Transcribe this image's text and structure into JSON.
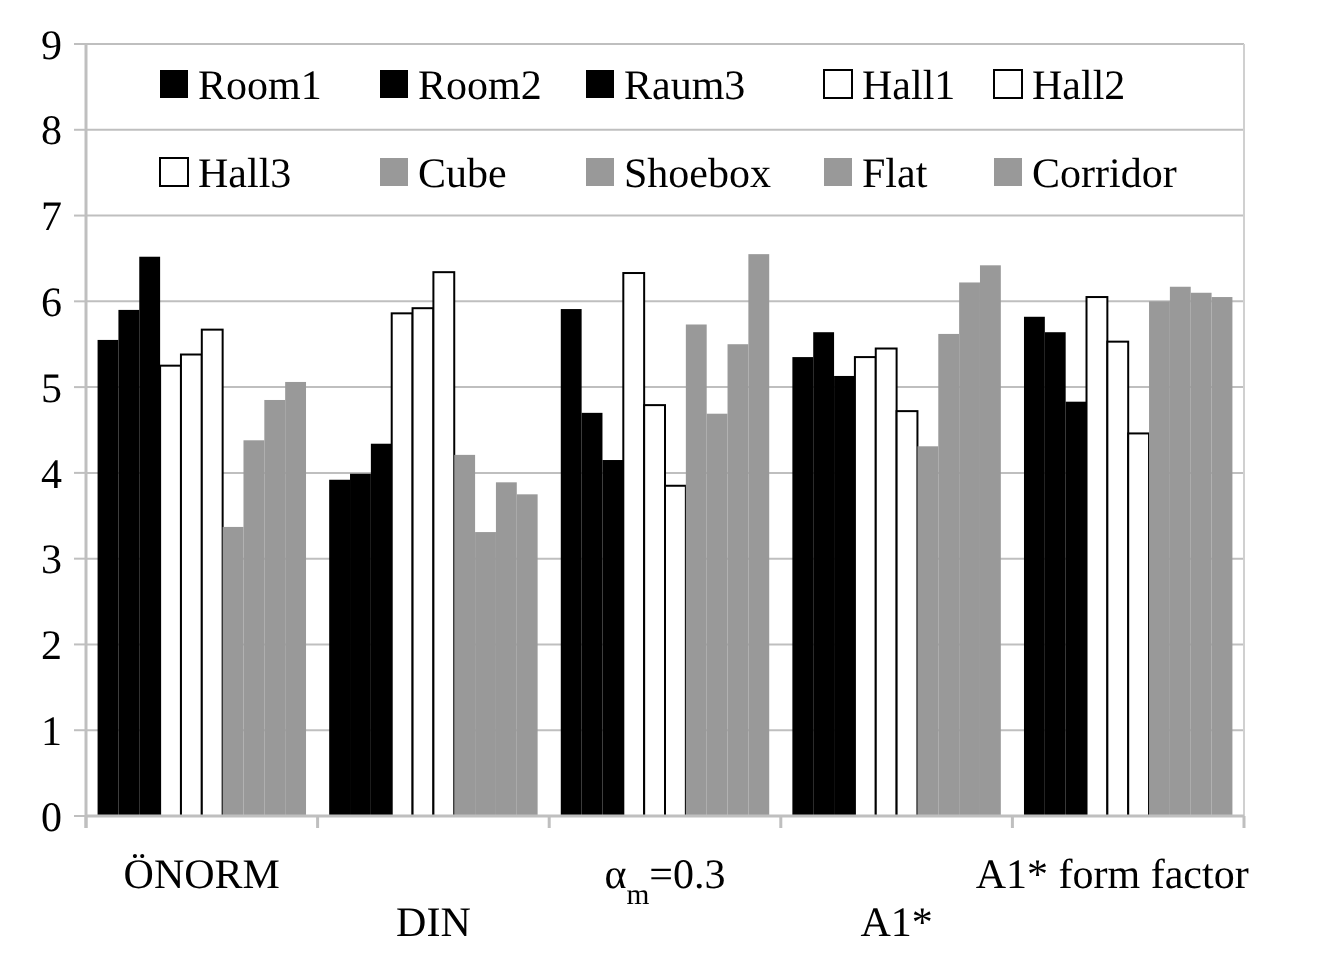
{
  "chart_data": {
    "type": "bar",
    "categories": [
      "ÖNORM",
      "DIN",
      "α$_{m}$=0.3",
      "A1*",
      "A1* form factor"
    ],
    "ylim": [
      0,
      9
    ],
    "yticks": [
      0,
      1,
      2,
      3,
      4,
      5,
      6,
      7,
      8,
      9
    ],
    "grid": "y",
    "legend": "top",
    "series": [
      {
        "name": "Room1",
        "color": "#000000",
        "values": [
          5.55,
          3.92,
          5.91,
          5.35,
          5.82
        ]
      },
      {
        "name": "Room2",
        "color": "#000000",
        "values": [
          5.9,
          3.99,
          4.7,
          5.64,
          5.64
        ]
      },
      {
        "name": "Raum3",
        "color": "#000000",
        "values": [
          6.52,
          4.34,
          4.15,
          5.13,
          4.83
        ]
      },
      {
        "name": "Hall1",
        "color": "#ffffff",
        "values": [
          5.25,
          5.86,
          6.33,
          5.35,
          6.05
        ]
      },
      {
        "name": "Hall2",
        "color": "#ffffff",
        "values": [
          5.38,
          5.92,
          4.79,
          5.45,
          5.53
        ]
      },
      {
        "name": "Hall3",
        "color": "#ffffff",
        "values": [
          5.67,
          6.34,
          3.85,
          4.72,
          4.46
        ]
      },
      {
        "name": "Cube",
        "color": "#999999",
        "values": [
          3.37,
          4.21,
          5.73,
          4.31,
          6.0
        ]
      },
      {
        "name": "Shoebox",
        "color": "#999999",
        "values": [
          4.38,
          3.31,
          4.69,
          5.62,
          6.17
        ]
      },
      {
        "name": "Flat",
        "color": "#999999",
        "values": [
          4.85,
          3.89,
          5.5,
          6.22,
          6.1
        ]
      },
      {
        "name": "Corridor",
        "color": "#999999",
        "values": [
          5.06,
          3.75,
          6.55,
          6.42,
          6.05
        ]
      }
    ]
  }
}
